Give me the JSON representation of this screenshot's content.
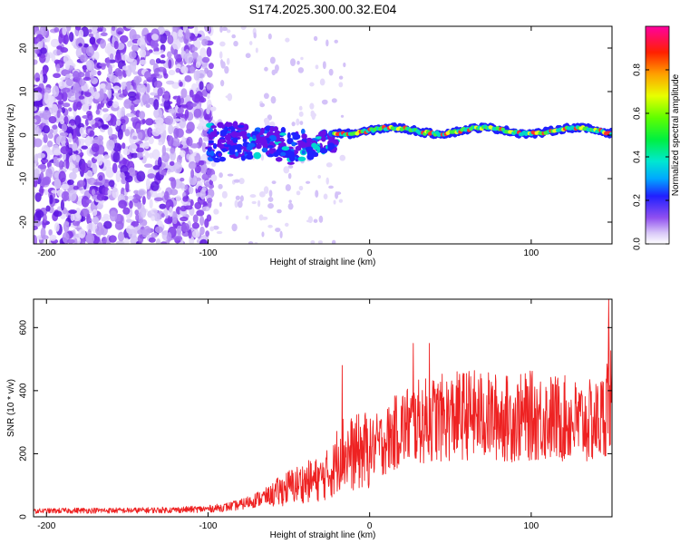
{
  "page": {
    "title": "S174.2025.300.00.32.E04"
  },
  "colors": {
    "snr_line": "#ee2222",
    "axes": "#000000",
    "background": "#ffffff"
  },
  "chart_data": [
    {
      "type": "heatmap",
      "name": "spectrogram",
      "xlabel": "Height of straight line (km)",
      "ylabel": "Frequency (Hz)",
      "xlim": [
        -208,
        150
      ],
      "ylim": [
        -25,
        25
      ],
      "xticks": [
        -200,
        -100,
        0,
        100
      ],
      "yticks": [
        -20,
        -10,
        0,
        10,
        20
      ],
      "description_bands": [
        {
          "x_range": [
            -208,
            -100
          ],
          "content": "diffuse noise across all frequencies"
        },
        {
          "x_range": [
            -100,
            -20
          ],
          "content": "scattered signal near 0 Hz, frequency roughly -5 to 3 Hz"
        },
        {
          "x_range": [
            -20,
            150
          ],
          "content": "narrow line near 1 Hz with normalized amplitude 0.5-1.0"
        }
      ],
      "colorbar": {
        "label": "Normalized spectral amplitude",
        "range": [
          0.0,
          1.0
        ],
        "ticks": [
          0.0,
          0.2,
          0.4,
          0.6,
          0.8
        ]
      }
    },
    {
      "type": "line",
      "name": "snr",
      "xlabel": "Height of straight line (km)",
      "ylabel": "SNR (10 * v/v)",
      "xlim": [
        -208,
        150
      ],
      "ylim": [
        0,
        690
      ],
      "xticks": [
        -200,
        -100,
        0,
        100
      ],
      "yticks": [
        0,
        200,
        400,
        600
      ],
      "series": [
        {
          "name": "SNR",
          "x": [
            -208,
            -180,
            -150,
            -120,
            -100,
            -90,
            -80,
            -70,
            -60,
            -50,
            -40,
            -30,
            -22,
            -18,
            -16,
            -10,
            0,
            10,
            20,
            30,
            40,
            50,
            60,
            70,
            80,
            90,
            100,
            110,
            120,
            130,
            140,
            145,
            148,
            150
          ],
          "mean": [
            18,
            20,
            20,
            22,
            25,
            30,
            38,
            55,
            70,
            95,
            110,
            120,
            150,
            220,
            200,
            200,
            215,
            240,
            285,
            300,
            310,
            315,
            325,
            320,
            315,
            310,
            320,
            315,
            310,
            300,
            300,
            320,
            400,
            350
          ],
          "peaks": [
            {
              "x": -17,
              "y": 480
            },
            {
              "x": 27,
              "y": 550
            },
            {
              "x": 37,
              "y": 550
            },
            {
              "x": 148,
              "y": 690
            }
          ]
        }
      ]
    }
  ]
}
